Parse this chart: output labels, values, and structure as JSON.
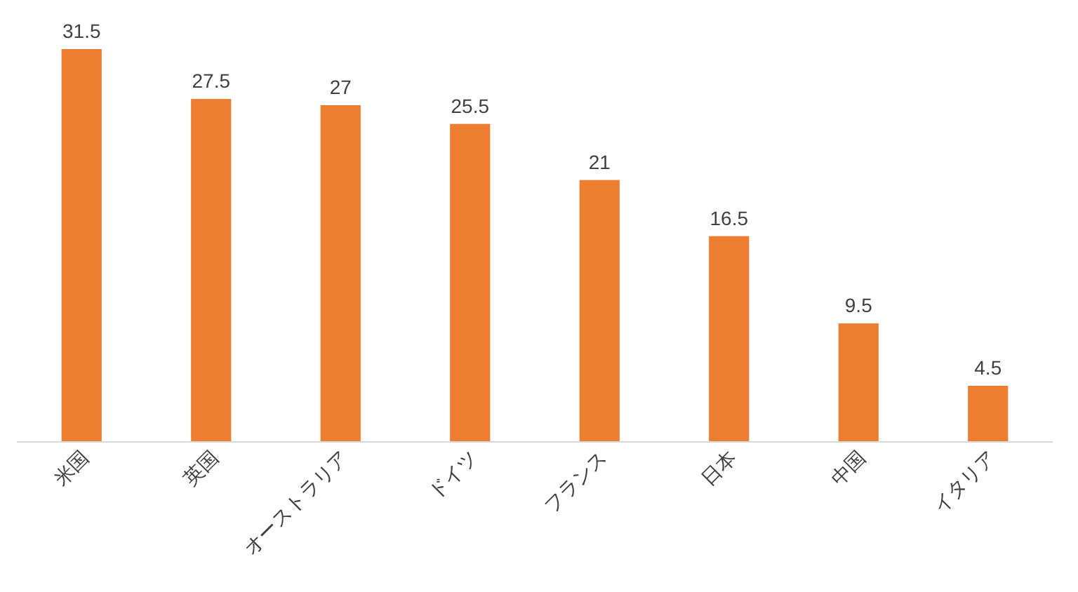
{
  "chart_data": {
    "type": "bar",
    "categories": [
      "米国",
      "英国",
      "オーストラリア",
      "ドイツ",
      "フランス",
      "日本",
      "中国",
      "イタリア"
    ],
    "values": [
      31.5,
      27.5,
      27,
      25.5,
      21,
      16.5,
      9.5,
      4.5
    ],
    "color": "#ed7d31",
    "data_labels": true
  }
}
